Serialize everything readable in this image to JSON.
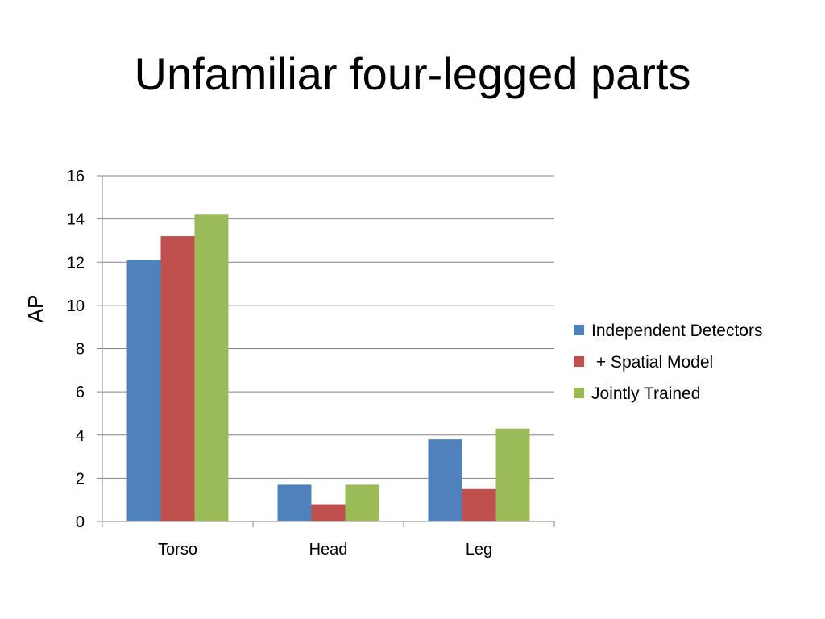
{
  "slide": {
    "title": "Unfamiliar four-legged parts"
  },
  "chart_data": {
    "type": "bar",
    "title": "",
    "xlabel": "",
    "ylabel": "AP",
    "ylim": [
      0,
      16
    ],
    "yticks": [
      0,
      2,
      4,
      6,
      8,
      10,
      12,
      14,
      16
    ],
    "grid": true,
    "legend_position": "right",
    "categories": [
      "Torso",
      "Head",
      "Leg"
    ],
    "series": [
      {
        "name": "Independent Detectors",
        "color": "#4f81bd",
        "values": [
          12.1,
          1.7,
          3.8
        ]
      },
      {
        "name": " + Spatial Model",
        "color": "#c0504d",
        "values": [
          13.2,
          0.8,
          1.5
        ]
      },
      {
        "name": "Jointly Trained",
        "color": "#9bbb59",
        "values": [
          14.2,
          1.7,
          4.3
        ]
      }
    ]
  }
}
